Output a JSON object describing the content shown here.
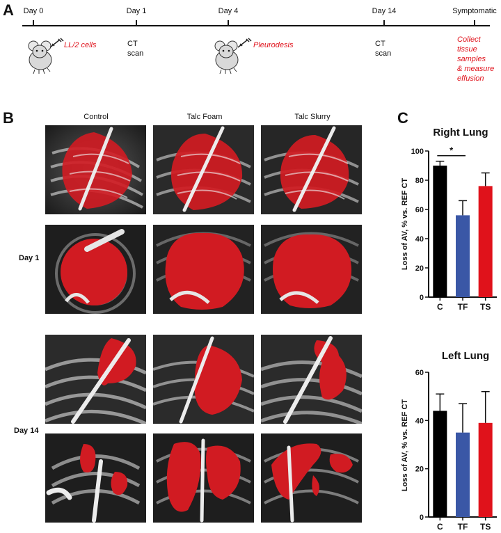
{
  "panels": {
    "a": "A",
    "b": "B",
    "c": "C"
  },
  "timeline": {
    "events": [
      {
        "label": "Day 0",
        "pos": 0
      },
      {
        "label": "Day 1",
        "pos": 1
      },
      {
        "label": "Day 4",
        "pos": 2
      },
      {
        "label": "Day 14",
        "pos": 3
      },
      {
        "label": "Symptomatic",
        "pos": 4
      }
    ],
    "cells_label": "LL/2 cells",
    "ct1": [
      "CT",
      "scan"
    ],
    "pleurodesis_label": "Pleurodesis",
    "ct2": [
      "CT",
      "scan"
    ],
    "collect": [
      "Collect",
      "tissue",
      "samples",
      "& measure",
      "effusion"
    ]
  },
  "imaging": {
    "columns": [
      "Control",
      "Talc Foam",
      "Talc Slurry"
    ],
    "rows": [
      "Day 1",
      "Day 14"
    ]
  },
  "colors": {
    "red": "#e0121b",
    "blue": "#3a57a6",
    "black": "#000000"
  },
  "chart_data": [
    {
      "type": "bar",
      "title": "Right Lung",
      "ylabel": "Loss of AV, % vs. REF CT",
      "categories": [
        "C",
        "TF",
        "TS"
      ],
      "values": [
        90,
        56,
        76
      ],
      "errors": [
        3,
        10,
        9
      ],
      "colors": [
        "#000000",
        "#3a57a6",
        "#e0121b"
      ],
      "ylim": [
        0,
        100
      ],
      "yticks": [
        0,
        20,
        40,
        60,
        80,
        100
      ],
      "significance": {
        "between": [
          "C",
          "TF"
        ],
        "label": "*"
      }
    },
    {
      "type": "bar",
      "title": "Left Lung",
      "ylabel": "Loss of AV, % vs. REF CT",
      "categories": [
        "C",
        "TF",
        "TS"
      ],
      "values": [
        44,
        35,
        39
      ],
      "errors": [
        7,
        12,
        13
      ],
      "colors": [
        "#000000",
        "#3a57a6",
        "#e0121b"
      ],
      "ylim": [
        0,
        60
      ],
      "yticks": [
        0,
        20,
        40,
        60
      ]
    }
  ]
}
